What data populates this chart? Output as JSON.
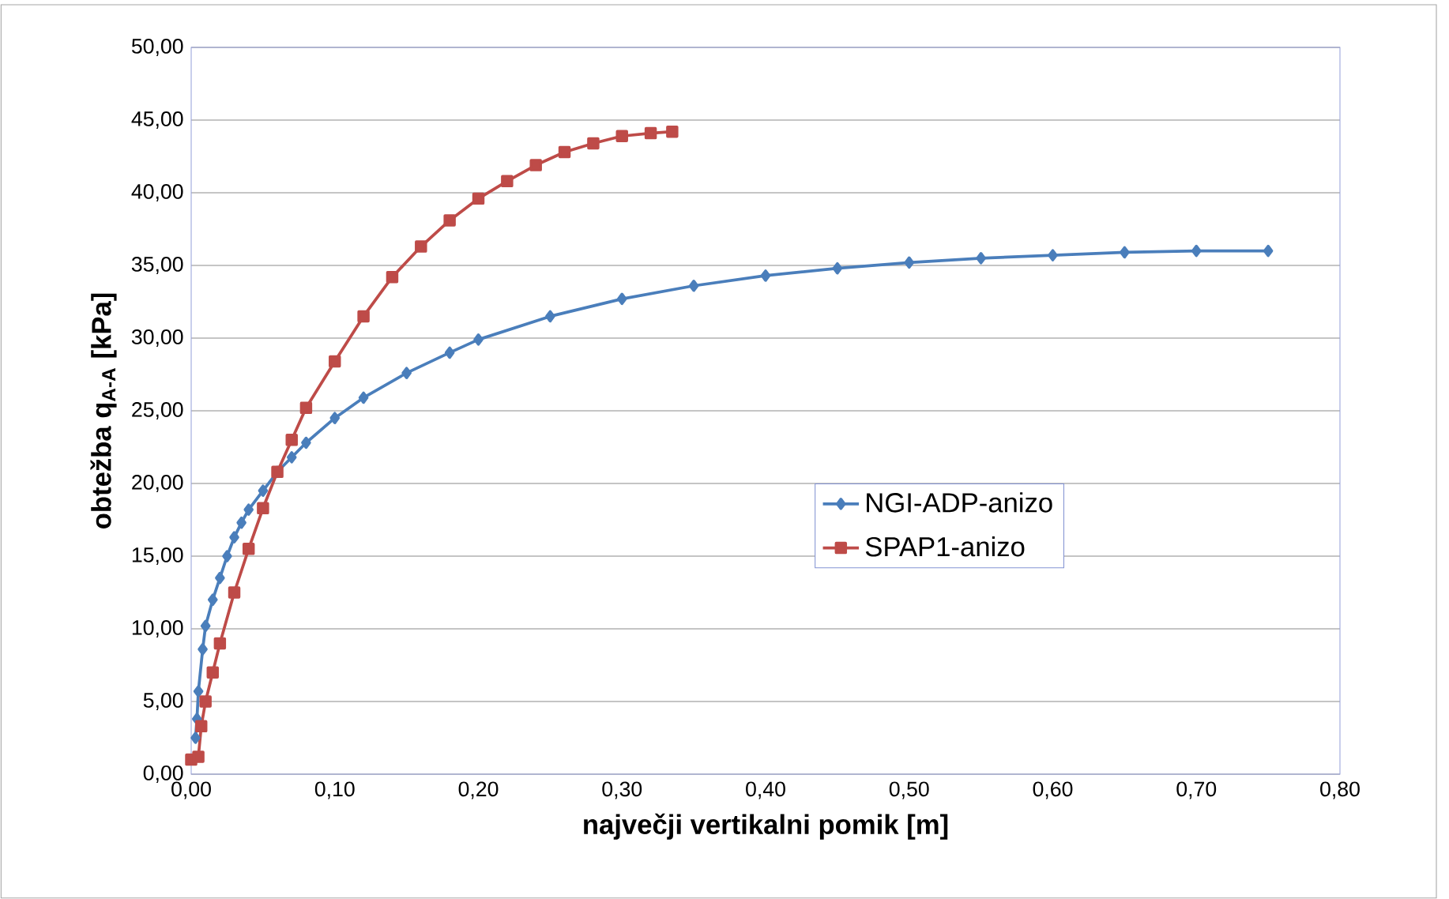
{
  "chart_data": {
    "type": "line",
    "xlabel": "največji vertikalni pomik [m]",
    "ylabel": "obtežba q$_{A-A}$ [kPa]",
    "xlim": [
      0,
      0.8
    ],
    "ylim": [
      0,
      50
    ],
    "xticks": [
      {
        "value": 0,
        "label": "0,00"
      },
      {
        "value": 0.1,
        "label": "0,10"
      },
      {
        "value": 0.2,
        "label": "0,20"
      },
      {
        "value": 0.3,
        "label": "0,30"
      },
      {
        "value": 0.4,
        "label": "0,40"
      },
      {
        "value": 0.5,
        "label": "0,50"
      },
      {
        "value": 0.6,
        "label": "0,60"
      },
      {
        "value": 0.7,
        "label": "0,70"
      },
      {
        "value": 0.8,
        "label": "0,80"
      }
    ],
    "yticks": [
      {
        "value": 0,
        "label": "0,00"
      },
      {
        "value": 5,
        "label": "5,00"
      },
      {
        "value": 10,
        "label": "10,00"
      },
      {
        "value": 15,
        "label": "15,00"
      },
      {
        "value": 20,
        "label": "20,00"
      },
      {
        "value": 25,
        "label": "25,00"
      },
      {
        "value": 30,
        "label": "30,00"
      },
      {
        "value": 35,
        "label": "35,00"
      },
      {
        "value": 40,
        "label": "40,00"
      },
      {
        "value": 45,
        "label": "45,00"
      },
      {
        "value": 50,
        "label": "50,00"
      }
    ],
    "grid": "y",
    "legend": "center",
    "series": [
      {
        "name": "NGI-ADP-anizo",
        "color": "#4a7ebb",
        "marker": "diamond",
        "x": [
          0.003,
          0.004,
          0.005,
          0.008,
          0.01,
          0.015,
          0.02,
          0.025,
          0.03,
          0.035,
          0.04,
          0.05,
          0.06,
          0.07,
          0.08,
          0.1,
          0.12,
          0.15,
          0.18,
          0.2,
          0.25,
          0.3,
          0.35,
          0.4,
          0.45,
          0.5,
          0.55,
          0.6,
          0.65,
          0.7,
          0.75
        ],
        "values": [
          2.5,
          3.8,
          5.7,
          8.6,
          10.2,
          12,
          13.5,
          15,
          16.3,
          17.3,
          18.2,
          19.5,
          20.8,
          21.8,
          22.8,
          24.5,
          25.9,
          27.6,
          29,
          29.9,
          31.5,
          32.7,
          33.6,
          34.3,
          34.8,
          35.2,
          35.5,
          35.7,
          35.9,
          36,
          36
        ]
      },
      {
        "name": "SPAP1-anizo",
        "color": "#be4b48",
        "marker": "square",
        "x": [
          0.0,
          0.005,
          0.007,
          0.01,
          0.015,
          0.02,
          0.03,
          0.04,
          0.05,
          0.06,
          0.07,
          0.08,
          0.1,
          0.12,
          0.14,
          0.16,
          0.18,
          0.2,
          0.22,
          0.24,
          0.26,
          0.28,
          0.3,
          0.32,
          0.335
        ],
        "values": [
          1.0,
          1.2,
          3.3,
          5,
          7,
          9,
          12.5,
          15.5,
          18.3,
          20.8,
          23,
          25.2,
          28.4,
          31.5,
          34.2,
          36.3,
          38.1,
          39.6,
          40.8,
          41.9,
          42.8,
          43.4,
          43.9,
          44.1,
          44.2
        ]
      }
    ]
  }
}
